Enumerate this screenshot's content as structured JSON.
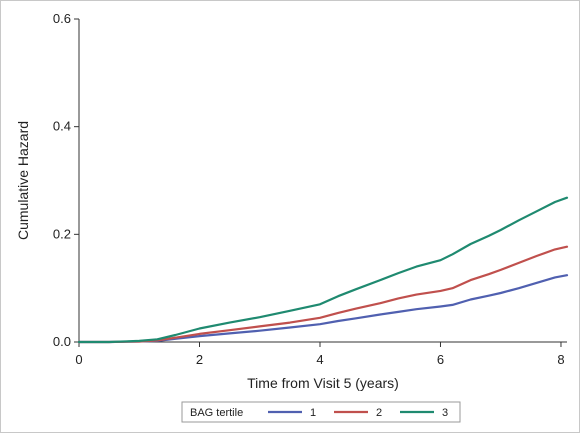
{
  "chart_data": {
    "type": "line",
    "xlabel": "Time from Visit 5 (years)",
    "ylabel": "Cumulative Hazard",
    "xlim": [
      0,
      8.1
    ],
    "ylim": [
      0,
      0.6
    ],
    "x_ticks": [
      0,
      2,
      4,
      6,
      8
    ],
    "x_tick_labels": [
      "0",
      "2",
      "4",
      "6",
      "8"
    ],
    "y_ticks": [
      0.0,
      0.2,
      0.4,
      0.6
    ],
    "y_tick_labels": [
      "0.0",
      "0.2",
      "0.4",
      "0.6"
    ],
    "grid": false,
    "legend": {
      "title": "BAG tertile",
      "placement": "bottom"
    },
    "series": [
      {
        "name": "1",
        "color": "#5060b0",
        "x": [
          0,
          0.5,
          1.0,
          1.3,
          1.6,
          2.0,
          2.5,
          3.0,
          3.5,
          4.0,
          4.3,
          4.6,
          5.0,
          5.3,
          5.6,
          6.0,
          6.2,
          6.5,
          6.8,
          7.0,
          7.3,
          7.6,
          7.9,
          8.1
        ],
        "y": [
          0.0,
          0.0,
          0.001,
          0.002,
          0.006,
          0.011,
          0.016,
          0.021,
          0.027,
          0.033,
          0.039,
          0.044,
          0.051,
          0.056,
          0.061,
          0.066,
          0.069,
          0.079,
          0.086,
          0.091,
          0.1,
          0.11,
          0.12,
          0.124
        ]
      },
      {
        "name": "2",
        "color": "#c0504d",
        "x": [
          0,
          0.5,
          1.0,
          1.3,
          1.6,
          2.0,
          2.5,
          3.0,
          3.5,
          4.0,
          4.3,
          4.6,
          5.0,
          5.3,
          5.6,
          6.0,
          6.2,
          6.5,
          6.8,
          7.0,
          7.3,
          7.6,
          7.9,
          8.1
        ],
        "y": [
          0.0,
          0.0,
          0.001,
          0.003,
          0.008,
          0.015,
          0.022,
          0.029,
          0.036,
          0.045,
          0.054,
          0.062,
          0.072,
          0.081,
          0.088,
          0.095,
          0.1,
          0.115,
          0.126,
          0.134,
          0.147,
          0.16,
          0.172,
          0.177
        ]
      },
      {
        "name": "3",
        "color": "#1f8a70",
        "x": [
          0,
          0.5,
          1.0,
          1.3,
          1.6,
          2.0,
          2.5,
          3.0,
          3.5,
          4.0,
          4.3,
          4.6,
          5.0,
          5.3,
          5.6,
          6.0,
          6.2,
          6.5,
          6.8,
          7.0,
          7.3,
          7.6,
          7.9,
          8.1
        ],
        "y": [
          0.0,
          0.0,
          0.002,
          0.005,
          0.013,
          0.025,
          0.036,
          0.046,
          0.058,
          0.07,
          0.085,
          0.098,
          0.115,
          0.128,
          0.14,
          0.152,
          0.163,
          0.182,
          0.197,
          0.208,
          0.226,
          0.243,
          0.26,
          0.268
        ]
      }
    ]
  }
}
